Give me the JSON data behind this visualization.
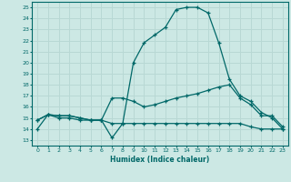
{
  "xlabel": "Humidex (Indice chaleur)",
  "bg_color": "#cce8e4",
  "grid_color": "#b8d8d4",
  "line_color": "#006868",
  "xlim": [
    -0.5,
    23.5
  ],
  "ylim": [
    12.5,
    25.5
  ],
  "yticks": [
    13,
    14,
    15,
    16,
    17,
    18,
    19,
    20,
    21,
    22,
    23,
    24,
    25
  ],
  "xticks": [
    0,
    1,
    2,
    3,
    4,
    5,
    6,
    7,
    8,
    9,
    10,
    11,
    12,
    13,
    14,
    15,
    16,
    17,
    18,
    19,
    20,
    21,
    22,
    23
  ],
  "line1_y": [
    14,
    15.3,
    15,
    15,
    14.8,
    14.8,
    14.8,
    13.2,
    14.5,
    20,
    21.8,
    22.5,
    23.2,
    24.8,
    25,
    25,
    24.5,
    21.8,
    18.5,
    17,
    16.5,
    15.5,
    15,
    14
  ],
  "line2_y": [
    14.8,
    15.3,
    15.2,
    15.2,
    15.0,
    14.8,
    14.8,
    16.8,
    16.8,
    16.5,
    16.0,
    16.2,
    16.5,
    16.8,
    17.0,
    17.2,
    17.5,
    17.8,
    18.0,
    16.8,
    16.2,
    15.2,
    15.2,
    14.2
  ],
  "line3_y": [
    14.8,
    15.3,
    15.2,
    15.2,
    15.0,
    14.8,
    14.8,
    14.5,
    14.5,
    14.5,
    14.5,
    14.5,
    14.5,
    14.5,
    14.5,
    14.5,
    14.5,
    14.5,
    14.5,
    14.5,
    14.2,
    14.0,
    14.0,
    14.0
  ]
}
